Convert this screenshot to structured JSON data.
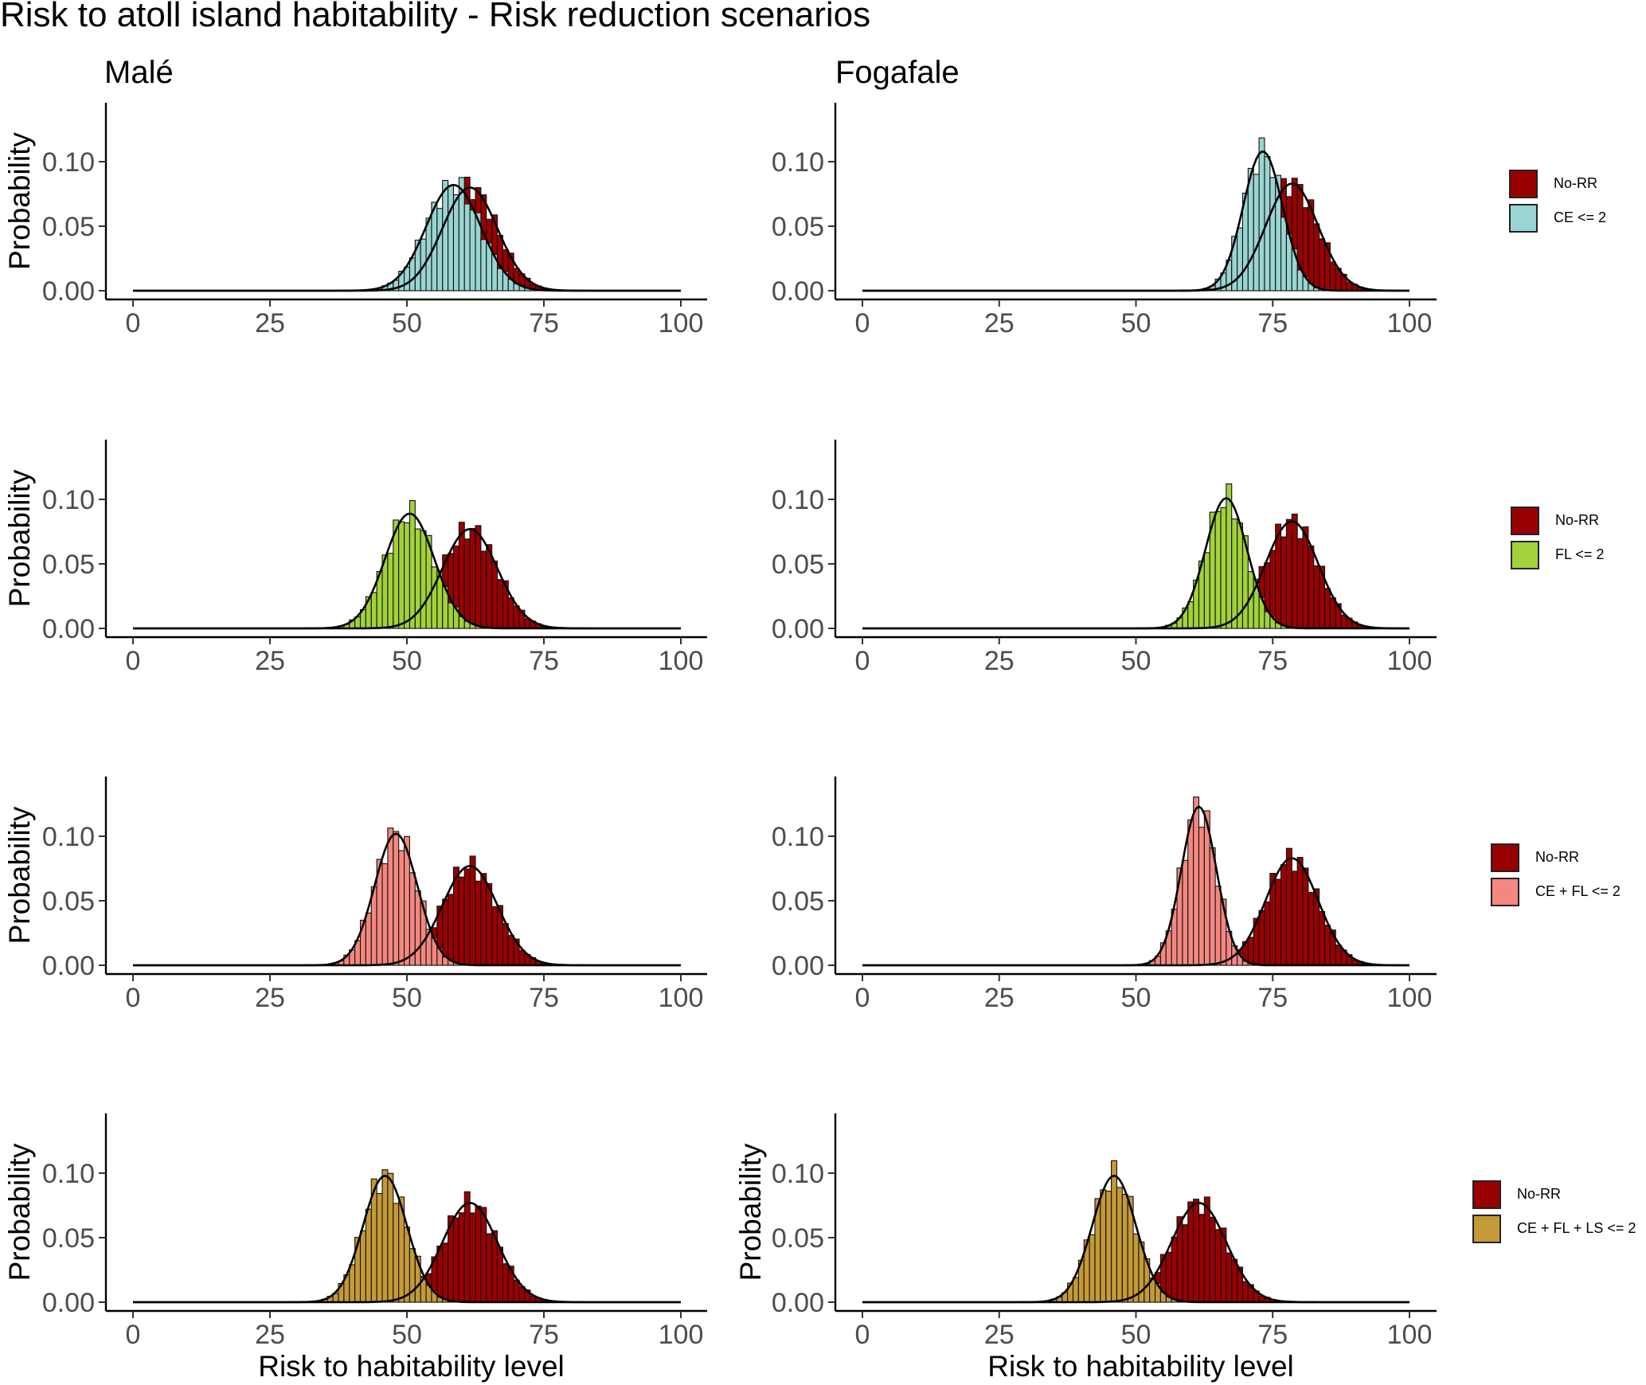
{
  "title": "Risk to atoll island habitability - Risk reduction scenarios",
  "colors": {
    "no_rr": "#990000",
    "ce": "#99d5d2",
    "fl": "#a1d23a",
    "cefl": "#f4877f",
    "cefls": "#c49a36"
  },
  "chart_data": [
    {
      "type": "bar",
      "panel": "Malé, CE <= 2",
      "title": "Malé",
      "ylabel": "Probability",
      "xlabel": "",
      "xlim": [
        0,
        100
      ],
      "ylim": [
        0,
        0.14
      ],
      "x_ticks": [
        "0",
        "25",
        "50",
        "75",
        "100"
      ],
      "y_ticks": [
        "0.00",
        "0.05",
        "0.10"
      ],
      "legend": [
        "No-RR",
        "CE <= 2"
      ],
      "series": [
        {
          "name": "No-RR",
          "color_key": "no_rr",
          "mean": 61.5,
          "sd": 5.0,
          "peak": 0.08
        },
        {
          "name": "CE <= 2",
          "color_key": "ce",
          "mean": 58.5,
          "sd": 5.0,
          "peak": 0.082
        }
      ]
    },
    {
      "type": "bar",
      "panel": "Fogafale, CE <= 2",
      "title": "Fogafale",
      "ylabel": "",
      "xlabel": "",
      "xlim": [
        0,
        100
      ],
      "ylim": [
        0,
        0.14
      ],
      "x_ticks": [
        "0",
        "25",
        "50",
        "75",
        "100"
      ],
      "y_ticks": [
        "0.00",
        "0.05",
        "0.10"
      ],
      "legend": [
        "No-RR",
        "CE <= 2"
      ],
      "series": [
        {
          "name": "No-RR",
          "color_key": "no_rr",
          "mean": 78.5,
          "sd": 4.8,
          "peak": 0.083
        },
        {
          "name": "CE <= 2",
          "color_key": "ce",
          "mean": 73.2,
          "sd": 3.6,
          "peak": 0.108
        }
      ]
    },
    {
      "type": "bar",
      "panel": "Malé, FL <= 2",
      "title": "",
      "ylabel": "Probability",
      "xlabel": "",
      "xlim": [
        0,
        100
      ],
      "ylim": [
        0,
        0.14
      ],
      "x_ticks": [
        "0",
        "25",
        "50",
        "75",
        "100"
      ],
      "y_ticks": [
        "0.00",
        "0.05",
        "0.10"
      ],
      "legend": [
        "No-RR",
        "FL <= 2"
      ],
      "series": [
        {
          "name": "No-RR",
          "color_key": "no_rr",
          "mean": 61.5,
          "sd": 5.0,
          "peak": 0.077
        },
        {
          "name": "FL <= 2",
          "color_key": "fl",
          "mean": 50.5,
          "sd": 4.5,
          "peak": 0.089
        }
      ]
    },
    {
      "type": "bar",
      "panel": "Fogafale, FL <= 2",
      "title": "",
      "ylabel": "",
      "xlabel": "",
      "xlim": [
        0,
        100
      ],
      "ylim": [
        0,
        0.14
      ],
      "x_ticks": [
        "0",
        "25",
        "50",
        "75",
        "100"
      ],
      "y_ticks": [
        "0.00",
        "0.05",
        "0.10"
      ],
      "legend": [
        "No-RR",
        "FL <= 2"
      ],
      "series": [
        {
          "name": "No-RR",
          "color_key": "no_rr",
          "mean": 78.5,
          "sd": 4.8,
          "peak": 0.083
        },
        {
          "name": "FL <= 2",
          "color_key": "fl",
          "mean": 66.5,
          "sd": 3.8,
          "peak": 0.101
        }
      ]
    },
    {
      "type": "bar",
      "panel": "Malé, CE + FL <= 2",
      "title": "",
      "ylabel": "Probability",
      "xlabel": "",
      "xlim": [
        0,
        100
      ],
      "ylim": [
        0,
        0.14
      ],
      "x_ticks": [
        "0",
        "25",
        "50",
        "75",
        "100"
      ],
      "y_ticks": [
        "0.00",
        "0.05",
        "0.10"
      ],
      "legend": [
        "No-RR",
        "CE + FL <= 2"
      ],
      "series": [
        {
          "name": "No-RR",
          "color_key": "no_rr",
          "mean": 61.5,
          "sd": 5.0,
          "peak": 0.077
        },
        {
          "name": "CE + FL <= 2",
          "color_key": "cefl",
          "mean": 48.0,
          "sd": 3.9,
          "peak": 0.102
        }
      ]
    },
    {
      "type": "bar",
      "panel": "Fogafale, CE + FL <= 2",
      "title": "",
      "ylabel": "",
      "xlabel": "",
      "xlim": [
        0,
        100
      ],
      "ylim": [
        0,
        0.14
      ],
      "x_ticks": [
        "0",
        "25",
        "50",
        "75",
        "100"
      ],
      "y_ticks": [
        "0.00",
        "0.05",
        "0.10"
      ],
      "legend": [
        "No-RR",
        "CE + FL <= 2"
      ],
      "series": [
        {
          "name": "No-RR",
          "color_key": "no_rr",
          "mean": 78.5,
          "sd": 4.8,
          "peak": 0.083
        },
        {
          "name": "CE + FL <= 2",
          "color_key": "cefl",
          "mean": 61.5,
          "sd": 3.2,
          "peak": 0.123
        }
      ]
    },
    {
      "type": "bar",
      "panel": "Malé, CE + FL + LS <= 2",
      "title": "",
      "ylabel": "Probability",
      "xlabel": "Risk to habitability level",
      "xlim": [
        0,
        100
      ],
      "ylim": [
        0,
        0.14
      ],
      "x_ticks": [
        "0",
        "25",
        "50",
        "75",
        "100"
      ],
      "y_ticks": [
        "0.00",
        "0.05",
        "0.10"
      ],
      "legend": [
        "No-RR",
        "CE + FL + LS <= 2"
      ],
      "series": [
        {
          "name": "No-RR",
          "color_key": "no_rr",
          "mean": 61.5,
          "sd": 5.0,
          "peak": 0.077
        },
        {
          "name": "CE + FL + LS <= 2",
          "color_key": "cefls",
          "mean": 46.0,
          "sd": 4.0,
          "peak": 0.098
        }
      ]
    },
    {
      "type": "bar",
      "panel": "Fogafale, CE + FL + LS <= 2",
      "title": "",
      "ylabel": "Probability",
      "xlabel": "Risk to habitability level",
      "xlim": [
        0,
        100
      ],
      "ylim": [
        0,
        0.14
      ],
      "x_ticks": [
        "0",
        "25",
        "50",
        "75",
        "100"
      ],
      "y_ticks": [
        "0.00",
        "0.05",
        "0.10"
      ],
      "legend": [
        "No-RR",
        "CE + FL + LS <= 2"
      ],
      "series": [
        {
          "name": "No-RR",
          "color_key": "no_rr",
          "mean": 61.5,
          "sd": 5.0,
          "peak": 0.077
        },
        {
          "name": "CE + FL + LS <= 2",
          "color_key": "cefls",
          "mean": 46.0,
          "sd": 4.0,
          "peak": 0.098
        }
      ]
    }
  ]
}
